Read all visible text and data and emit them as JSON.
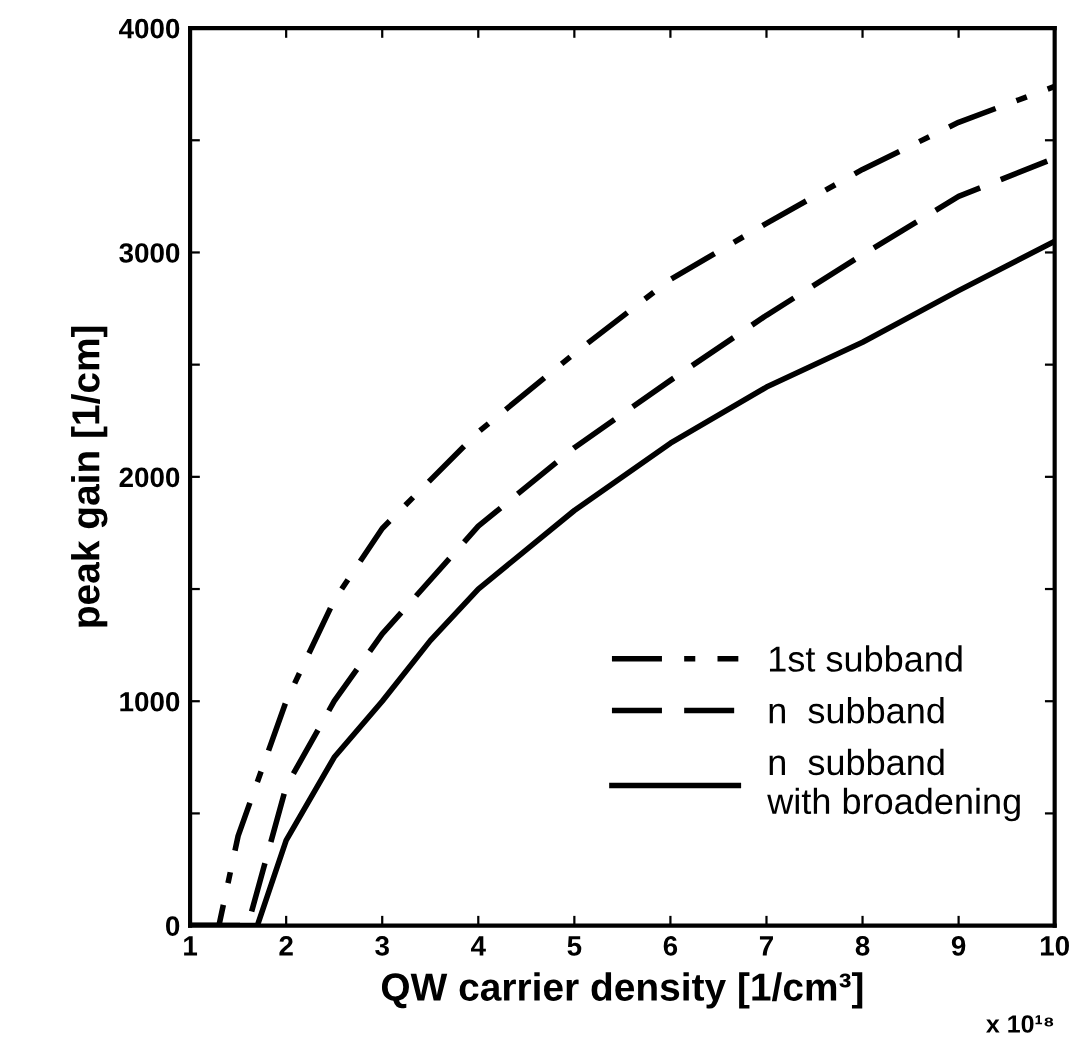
{
  "chart_data": {
    "type": "line",
    "xlabel": "QW carrier density [1/cm³]",
    "ylabel": "peak gain [1/cm]",
    "annotations": [
      "x 10¹⁸"
    ],
    "xlim": [
      1,
      10
    ],
    "ylim": [
      0,
      4000
    ],
    "xticks": [
      1,
      2,
      3,
      4,
      5,
      6,
      7,
      8,
      9,
      10
    ],
    "yticks": [
      0,
      {
        "value": 500,
        "label": null
      },
      1000,
      {
        "value": 1500,
        "label": null
      },
      2000,
      {
        "value": 2500,
        "label": null
      },
      3000,
      {
        "value": 3500,
        "label": null
      },
      4000
    ],
    "grid": false,
    "legend": "bottom right",
    "marker": "none",
    "series": [
      {
        "name": "1st subband",
        "color": "#000000",
        "line_style": "dashdot",
        "x": [
          1,
          1.3,
          1.5,
          2,
          2.5,
          3,
          4,
          5,
          6,
          7,
          8,
          9,
          10
        ],
        "values": [
          0,
          0,
          400,
          1000,
          1450,
          1770,
          2200,
          2550,
          2880,
          3130,
          3370,
          3580,
          3740
        ]
      },
      {
        "name": "n  subband",
        "color": "#000000",
        "line_style": "dashed",
        "x": [
          1,
          1.6,
          2,
          2.5,
          3,
          4,
          5,
          6,
          7,
          8,
          9,
          10
        ],
        "values": [
          0,
          0,
          620,
          1000,
          1300,
          1780,
          2130,
          2430,
          2720,
          2990,
          3250,
          3420
        ]
      },
      {
        "name": "n  subband\nwith broadening",
        "color": "#000000",
        "line_style": "solid",
        "x": [
          1,
          1.7,
          2,
          2.5,
          3,
          3.5,
          4,
          5,
          6,
          7,
          8,
          9,
          10
        ],
        "values": [
          0,
          0,
          380,
          750,
          1000,
          1270,
          1500,
          1850,
          2150,
          2400,
          2600,
          2830,
          3050
        ]
      }
    ]
  }
}
